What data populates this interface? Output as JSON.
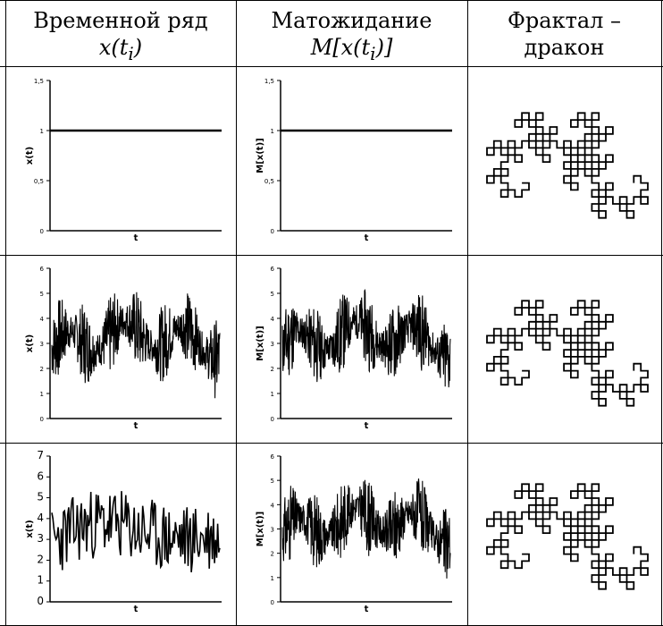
{
  "headers": {
    "col1_line1": "Временной ряд",
    "col1_line2": "x(t_i)",
    "col2_line1": "Матожидание",
    "col2_line2": "M[x(t_i)]",
    "col3_line1": "Фрактал –",
    "col3_line2": "дракон"
  },
  "chart_data": [
    {
      "type": "line",
      "ylabel": "x(t)",
      "xlabel": "t",
      "ylim": [
        0,
        1.5
      ],
      "yticks": [
        "0",
        "0,5",
        "1",
        "1,5"
      ],
      "pattern": "constant",
      "value": 1
    },
    {
      "type": "line",
      "ylabel": "M[x(t)]",
      "xlabel": "t",
      "ylim": [
        0,
        1.5
      ],
      "yticks": [
        "0",
        "0,5",
        "1",
        "1,5"
      ],
      "pattern": "constant",
      "value": 1
    },
    {
      "type": "line",
      "ylabel": "x(t)",
      "xlabel": "t",
      "ylim": [
        0,
        6
      ],
      "yticks": [
        "0",
        "1",
        "2",
        "3",
        "4",
        "5",
        "6"
      ],
      "pattern": "noisy",
      "seed": 7
    },
    {
      "type": "line",
      "ylabel": "M[x(t)]",
      "xlabel": "t",
      "ylim": [
        0,
        6
      ],
      "yticks": [
        "0",
        "1",
        "2",
        "3",
        "4",
        "5",
        "6"
      ],
      "pattern": "noisy",
      "seed": 11
    },
    {
      "type": "line",
      "ylabel": "x(t)",
      "xlabel": "t",
      "ylim": [
        0,
        7
      ],
      "yticks": [
        "0",
        "1",
        "2",
        "3",
        "4",
        "5",
        "6",
        "7"
      ],
      "pattern": "walk",
      "seed": 23
    },
    {
      "type": "line",
      "ylabel": "M[x(t)]",
      "xlabel": "t",
      "ylim": [
        0,
        6
      ],
      "yticks": [
        "0",
        "1",
        "2",
        "3",
        "4",
        "5",
        "6"
      ],
      "pattern": "noisy",
      "seed": 31
    }
  ],
  "fractals": [
    {
      "name": "dragon-1",
      "seed": 3,
      "iterations": 8
    },
    {
      "name": "dragon-2",
      "seed": 9,
      "iterations": 8
    },
    {
      "name": "dragon-3",
      "seed": 15,
      "iterations": 8
    }
  ]
}
